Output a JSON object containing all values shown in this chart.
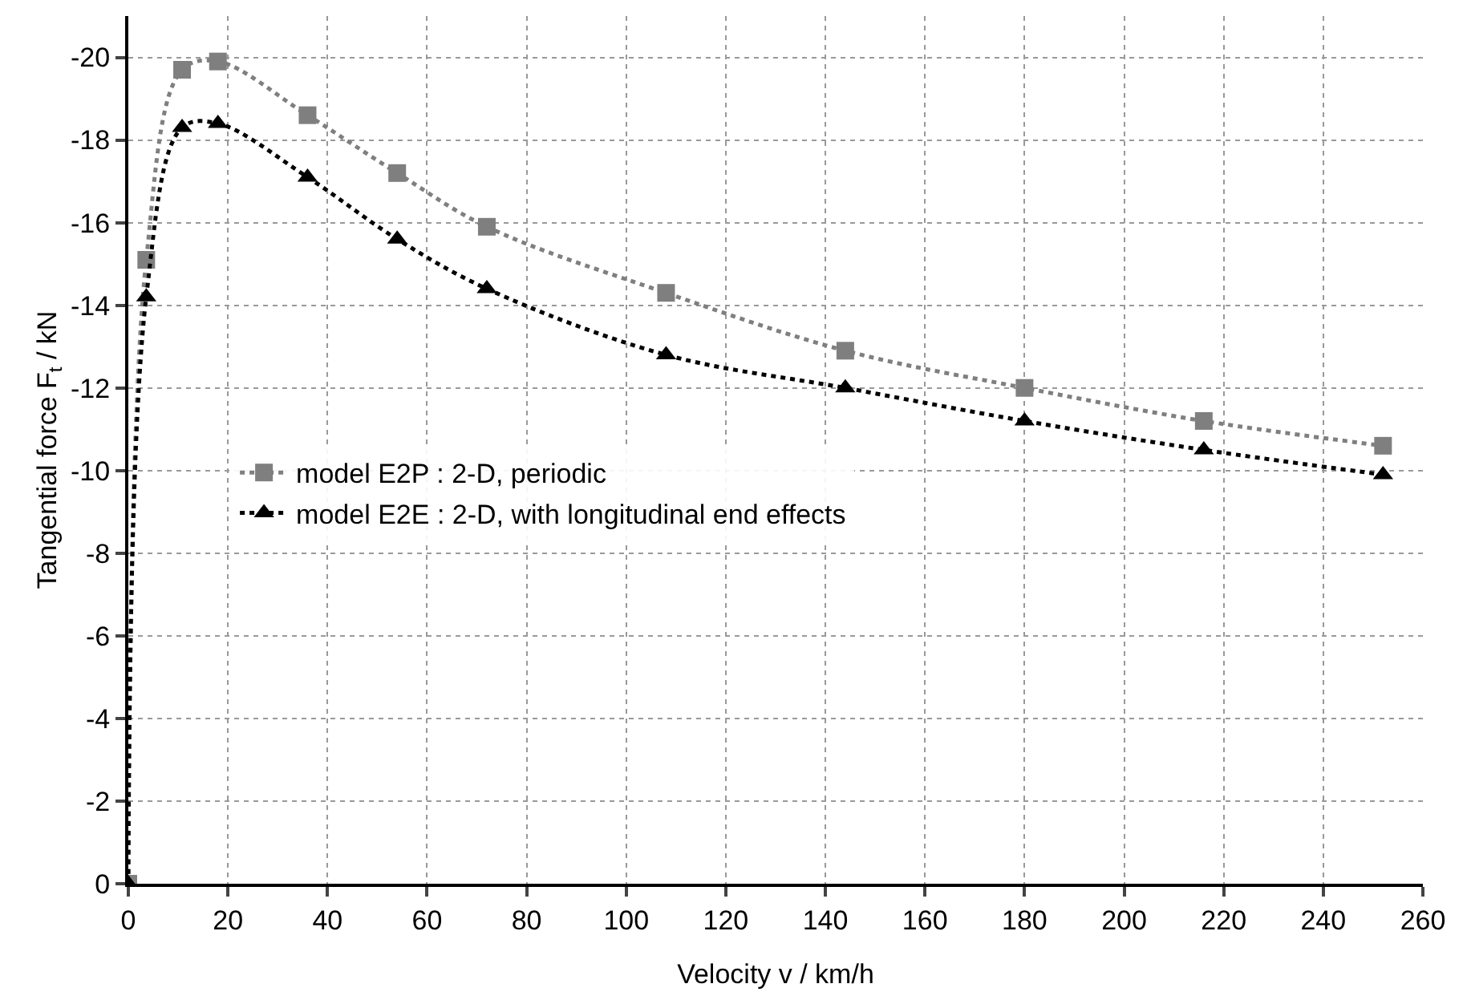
{
  "chart_data": {
    "type": "line",
    "xlabel": "Velocity v / km/h",
    "ylabel": "Tangential force F$_{t}$ / kN",
    "x": [
      0,
      3.6,
      10.8,
      18,
      36,
      54,
      72,
      108,
      144,
      180,
      216,
      252
    ],
    "series": [
      {
        "name": "model E2P : 2-D, periodic",
        "color": "#7f7f7f",
        "marker": "square",
        "line_style": "dotted",
        "values": [
          0,
          -15.1,
          -19.7,
          -19.9,
          -18.6,
          -17.2,
          -15.9,
          -14.3,
          -12.9,
          -12.0,
          -11.2,
          -10.6
        ]
      },
      {
        "name": "model E2E : 2-D, with longitudinal end effects",
        "color": "#000000",
        "marker": "triangle",
        "line_style": "dotted",
        "values": [
          0,
          -14.2,
          -18.3,
          -18.4,
          -17.1,
          -15.6,
          -14.4,
          -12.8,
          -12.0,
          -11.2,
          -10.5,
          -9.9
        ]
      }
    ],
    "xlim": [
      0,
      260
    ],
    "xticks": [
      0,
      20,
      40,
      60,
      80,
      100,
      120,
      140,
      160,
      180,
      200,
      220,
      240,
      260
    ],
    "ylim": [
      0,
      -21
    ],
    "yticks": [
      0,
      -2,
      -4,
      -6,
      -8,
      -10,
      -12,
      -14,
      -16,
      -18,
      -20
    ],
    "grid": true,
    "legend": "center left"
  }
}
